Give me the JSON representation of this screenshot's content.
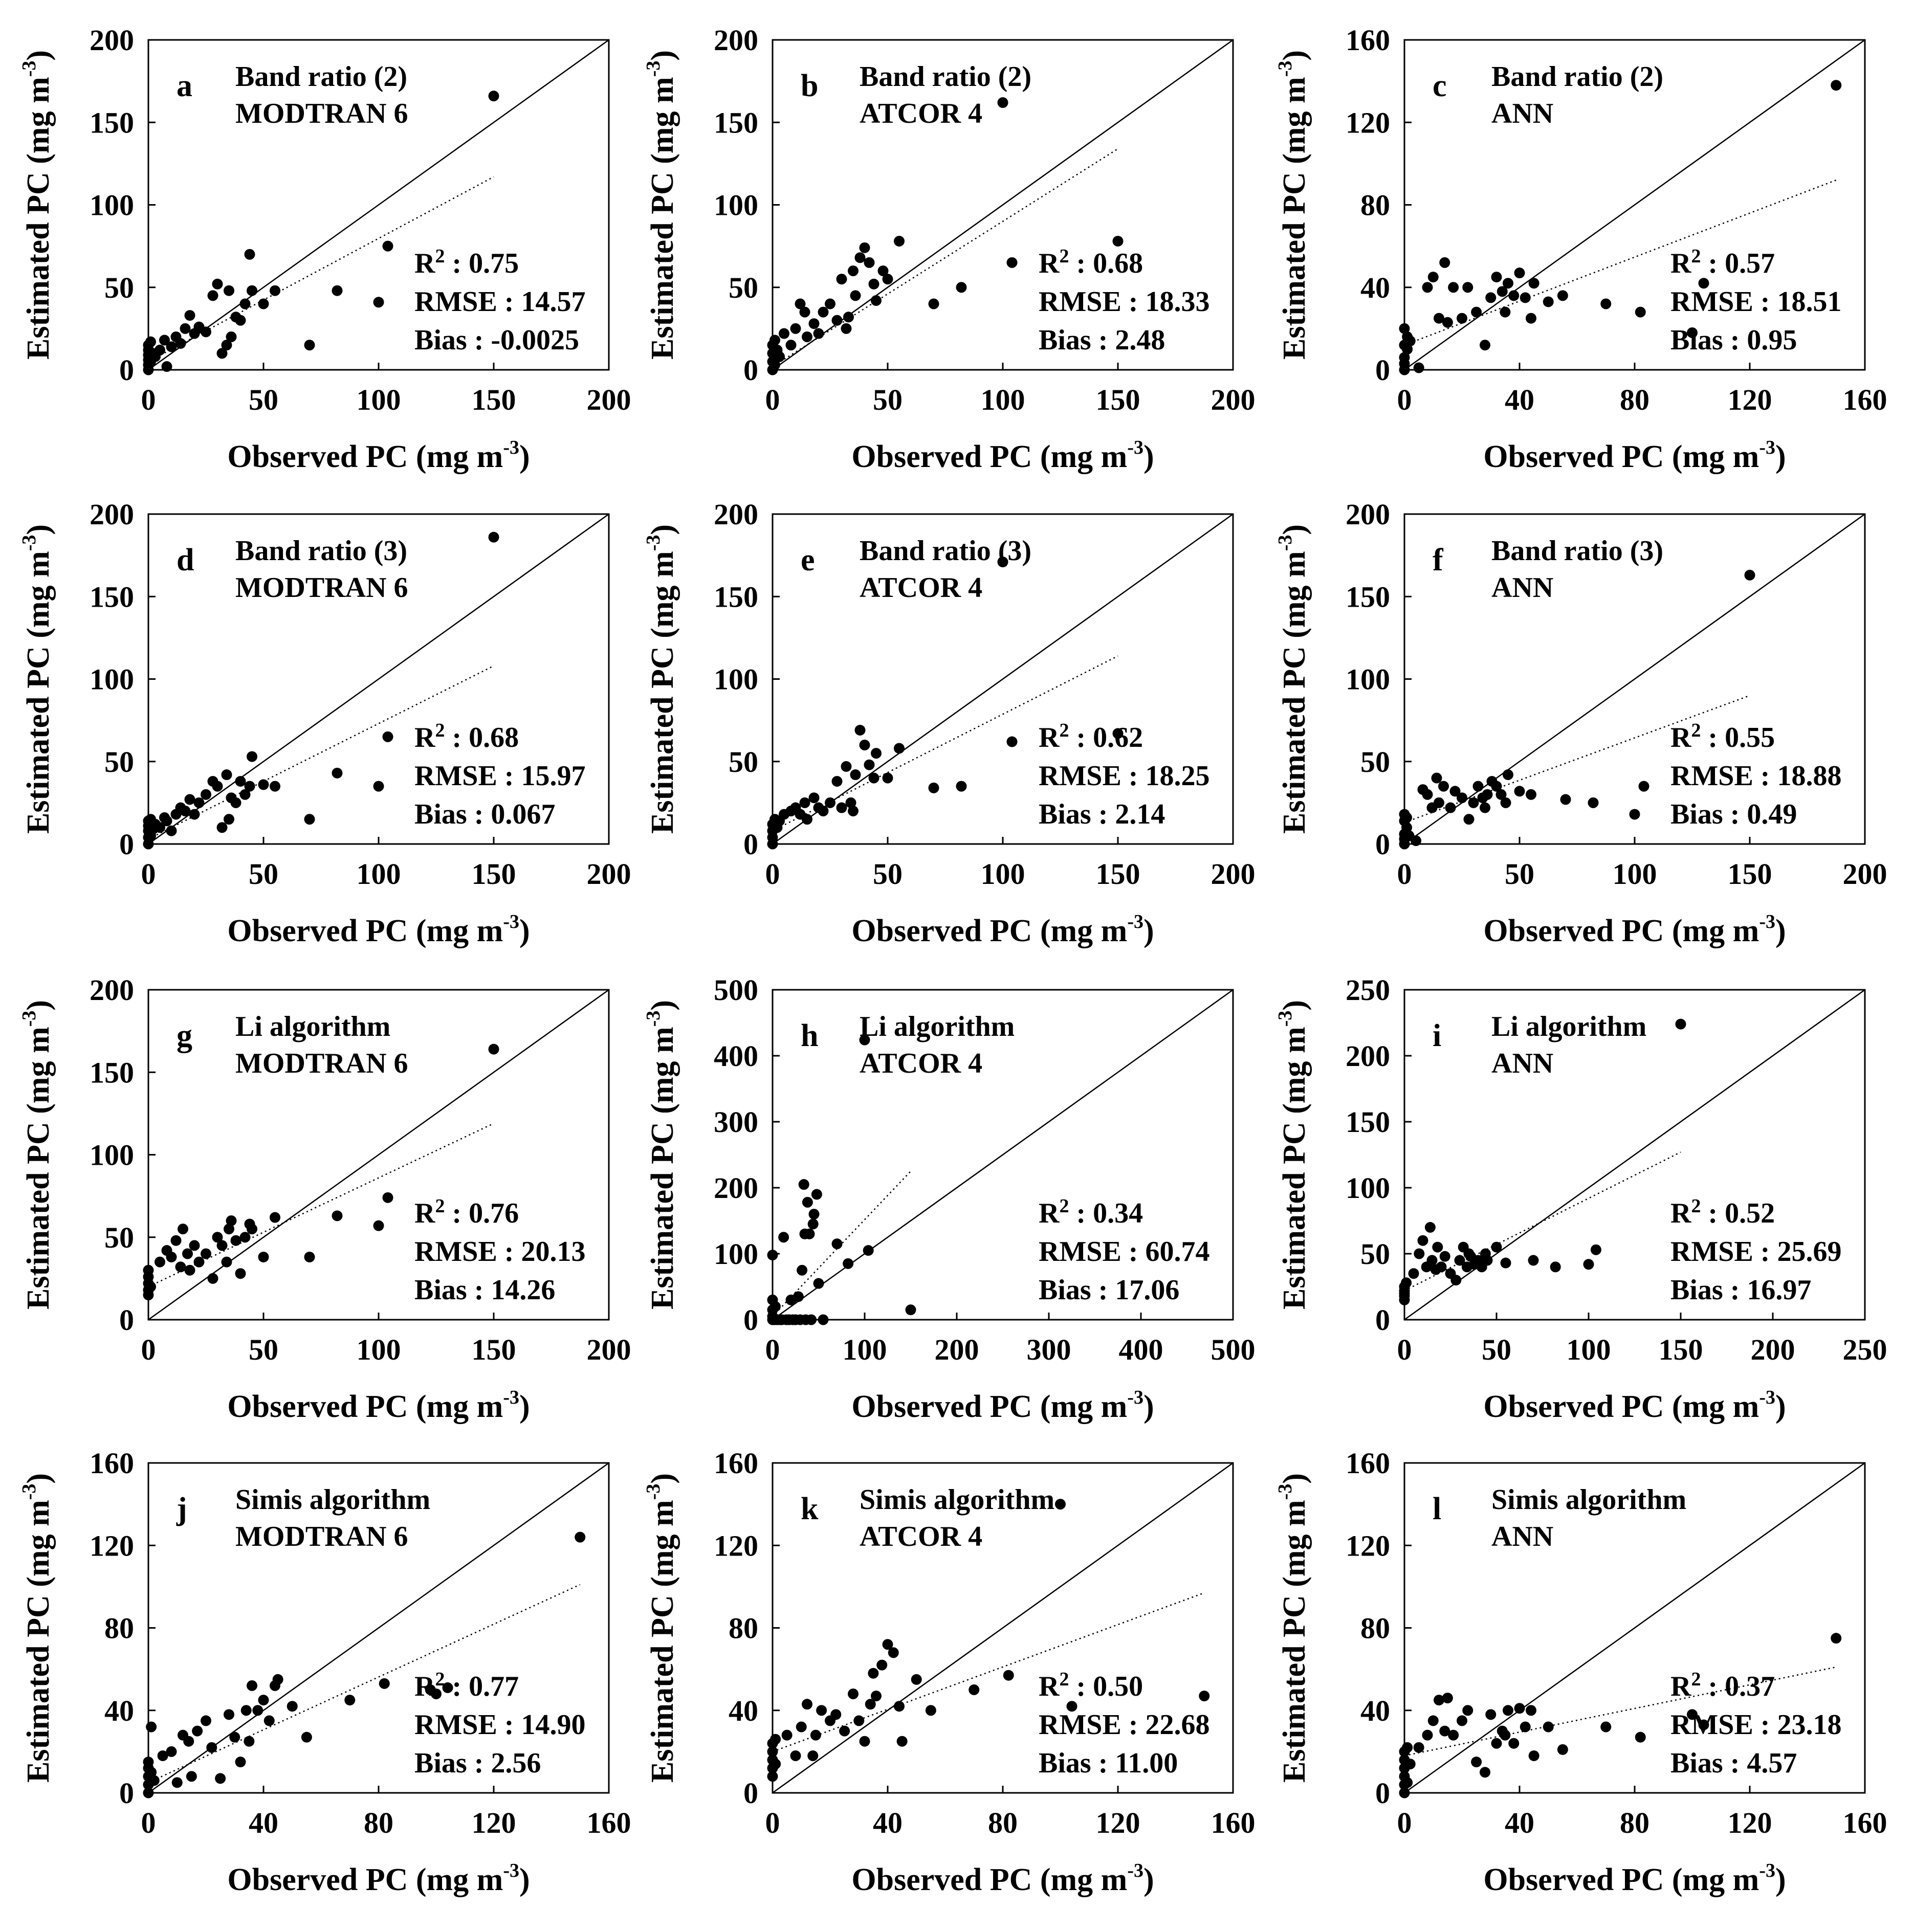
{
  "figure": {
    "background": "#ffffff",
    "ink": "#000000"
  },
  "chart_data": [
    {
      "type": "scatter",
      "panel": "a",
      "line1": "Band ratio (2)",
      "line2": "MODTRAN 6",
      "xlabel": "Observed PC (mg m",
      "ylabel": "Estimated PC (mg m",
      "unit_exp": "-3",
      "unit_close": ")",
      "xlim": [
        0,
        200
      ],
      "ylim": [
        0,
        200
      ],
      "ticks": [
        0,
        50,
        100,
        150,
        200
      ],
      "stats": {
        "r2_label": "R",
        "r2_exp": "2",
        "r2_value": " : 0.75",
        "rmse": "RMSE : 14.57",
        "bias": "Bias : -0.0025"
      },
      "fit": {
        "x": [
          0,
          150
        ],
        "y": [
          5,
          117
        ]
      },
      "x": [
        0,
        0,
        0,
        0,
        0,
        0,
        1,
        1,
        2,
        3,
        5,
        7,
        8,
        10,
        12,
        14,
        16,
        18,
        20,
        22,
        25,
        28,
        30,
        32,
        34,
        35,
        36,
        38,
        40,
        42,
        44,
        45,
        50,
        55,
        70,
        82,
        100,
        104,
        150
      ],
      "y": [
        0,
        3,
        6,
        9,
        12,
        15,
        5,
        17,
        10,
        8,
        12,
        18,
        2,
        14,
        20,
        16,
        25,
        33,
        22,
        26,
        23,
        45,
        52,
        10,
        15,
        48,
        20,
        32,
        30,
        40,
        70,
        48,
        40,
        48,
        15,
        48,
        41,
        75,
        166
      ]
    },
    {
      "type": "scatter",
      "panel": "b",
      "line1": "Band ratio (2)",
      "line2": "ATCOR 4",
      "xlabel": "Observed PC (mg m",
      "ylabel": "Estimated PC (mg m",
      "unit_exp": "-3",
      "unit_close": ")",
      "xlim": [
        0,
        200
      ],
      "ylim": [
        0,
        200
      ],
      "ticks": [
        0,
        50,
        100,
        150,
        200
      ],
      "stats": {
        "r2_label": "R",
        "r2_exp": "2",
        "r2_value": " : 0.68",
        "rmse": "RMSE : 18.33",
        "bias": "Bias : 2.48"
      },
      "fit": {
        "x": [
          0,
          150
        ],
        "y": [
          2,
          134
        ]
      },
      "x": [
        0,
        0,
        0,
        0,
        1,
        1,
        2,
        3,
        5,
        8,
        10,
        12,
        14,
        15,
        18,
        20,
        22,
        25,
        28,
        30,
        32,
        33,
        35,
        36,
        38,
        40,
        42,
        44,
        45,
        48,
        50,
        55,
        70,
        82,
        100,
        104,
        150
      ],
      "y": [
        0,
        5,
        10,
        15,
        3,
        18,
        12,
        8,
        22,
        15,
        25,
        40,
        35,
        20,
        28,
        22,
        35,
        40,
        30,
        55,
        25,
        32,
        60,
        45,
        68,
        74,
        65,
        52,
        42,
        60,
        55,
        78,
        40,
        50,
        162,
        65,
        78
      ]
    },
    {
      "type": "scatter",
      "panel": "c",
      "line1": "Band ratio (2)",
      "line2": "ANN",
      "xlabel": "Observed PC (mg m",
      "ylabel": "Estimated PC (mg m",
      "unit_exp": "-3",
      "unit_close": ")",
      "xlim": [
        0,
        160
      ],
      "ylim": [
        0,
        160
      ],
      "ticks": [
        0,
        40,
        80,
        120,
        160
      ],
      "stats": {
        "r2_label": "R",
        "r2_exp": "2",
        "r2_value": " : 0.57",
        "rmse": "RMSE : 18.51",
        "bias": "Bias : 0.95"
      },
      "fit": {
        "x": [
          0,
          150
        ],
        "y": [
          12,
          92
        ]
      },
      "x": [
        0,
        0,
        0,
        0,
        0,
        1,
        1,
        2,
        5,
        8,
        10,
        12,
        14,
        15,
        17,
        20,
        22,
        25,
        28,
        30,
        32,
        34,
        35,
        36,
        38,
        40,
        42,
        44,
        45,
        50,
        55,
        70,
        82,
        100,
        104,
        150
      ],
      "y": [
        0,
        3,
        6,
        12,
        20,
        10,
        16,
        14,
        1,
        40,
        45,
        25,
        52,
        23,
        40,
        25,
        40,
        28,
        12,
        35,
        45,
        38,
        28,
        42,
        36,
        47,
        35,
        25,
        42,
        33,
        36,
        32,
        28,
        18,
        42,
        138
      ]
    },
    {
      "type": "scatter",
      "panel": "d",
      "line1": "Band ratio (3)",
      "line2": "MODTRAN 6",
      "xlabel": "Observed PC (mg m",
      "ylabel": "Estimated PC (mg m",
      "unit_exp": "-3",
      "unit_close": ")",
      "xlim": [
        0,
        200
      ],
      "ylim": [
        0,
        200
      ],
      "ticks": [
        0,
        50,
        100,
        150,
        200
      ],
      "stats": {
        "r2_label": "R",
        "r2_exp": "2",
        "r2_value": " : 0.68",
        "rmse": "RMSE : 15.97",
        "bias": "Bias : 0.067"
      },
      "fit": {
        "x": [
          0,
          150
        ],
        "y": [
          3,
          108
        ]
      },
      "x": [
        0,
        0,
        0,
        0,
        0,
        1,
        1,
        2,
        3,
        5,
        7,
        8,
        10,
        12,
        14,
        16,
        18,
        20,
        22,
        25,
        28,
        30,
        32,
        34,
        35,
        36,
        38,
        40,
        42,
        44,
        45,
        50,
        55,
        70,
        82,
        100,
        104,
        150
      ],
      "y": [
        0,
        4,
        8,
        11,
        14,
        5,
        15,
        9,
        12,
        10,
        16,
        14,
        8,
        18,
        22,
        20,
        27,
        18,
        25,
        30,
        38,
        35,
        10,
        42,
        15,
        28,
        25,
        38,
        30,
        35,
        53,
        36,
        35,
        15,
        43,
        35,
        65,
        186
      ]
    },
    {
      "type": "scatter",
      "panel": "e",
      "line1": "Band ratio (3)",
      "line2": "ATCOR 4",
      "xlabel": "Observed PC (mg m",
      "ylabel": "Estimated PC (mg m",
      "unit_exp": "-3",
      "unit_close": ")",
      "xlim": [
        0,
        200
      ],
      "ylim": [
        0,
        200
      ],
      "ticks": [
        0,
        50,
        100,
        150,
        200
      ],
      "stats": {
        "r2_label": "R",
        "r2_exp": "2",
        "r2_value": " : 0.62",
        "rmse": "RMSE : 18.25",
        "bias": "Bias : 2.14"
      },
      "fit": {
        "x": [
          0,
          150
        ],
        "y": [
          8,
          114
        ]
      },
      "x": [
        0,
        0,
        0,
        0,
        1,
        2,
        3,
        5,
        8,
        10,
        12,
        14,
        15,
        18,
        20,
        22,
        25,
        28,
        30,
        32,
        34,
        35,
        36,
        38,
        40,
        42,
        44,
        45,
        50,
        55,
        70,
        82,
        100,
        104,
        150
      ],
      "y": [
        0,
        4,
        8,
        12,
        15,
        10,
        14,
        18,
        20,
        22,
        18,
        25,
        15,
        28,
        22,
        20,
        25,
        38,
        22,
        47,
        25,
        20,
        42,
        69,
        60,
        48,
        40,
        55,
        40,
        58,
        34,
        35,
        171,
        62,
        67
      ]
    },
    {
      "type": "scatter",
      "panel": "f",
      "line1": "Band ratio (3)",
      "line2": "ANN",
      "xlabel": "Observed PC (mg m",
      "ylabel": "Estimated PC (mg m",
      "unit_exp": "-3",
      "unit_close": ")",
      "xlim": [
        0,
        200
      ],
      "ylim": [
        0,
        200
      ],
      "ticks": [
        0,
        50,
        100,
        150,
        200
      ],
      "stats": {
        "r2_label": "R",
        "r2_exp": "2",
        "r2_value": " : 0.55",
        "rmse": "RMSE : 18.88",
        "bias": "Bias : 0.49"
      },
      "fit": {
        "x": [
          0,
          150
        ],
        "y": [
          13,
          90
        ]
      },
      "x": [
        0,
        0,
        0,
        0,
        0,
        1,
        1,
        2,
        5,
        8,
        10,
        12,
        14,
        15,
        17,
        20,
        22,
        25,
        28,
        30,
        32,
        34,
        35,
        36,
        38,
        40,
        42,
        44,
        45,
        50,
        55,
        70,
        82,
        100,
        104,
        150
      ],
      "y": [
        0,
        3,
        6,
        14,
        18,
        10,
        16,
        5,
        2,
        33,
        30,
        22,
        40,
        25,
        35,
        22,
        32,
        28,
        15,
        25,
        35,
        28,
        22,
        30,
        38,
        35,
        30,
        25,
        42,
        32,
        30,
        27,
        25,
        18,
        35,
        163
      ]
    },
    {
      "type": "scatter",
      "panel": "g",
      "line1": "Li algorithm",
      "line2": "MODTRAN 6",
      "xlabel": "Observed PC (mg m",
      "ylabel": "Estimated PC (mg m",
      "unit_exp": "-3",
      "unit_close": ")",
      "xlim": [
        0,
        200
      ],
      "ylim": [
        0,
        200
      ],
      "ticks": [
        0,
        50,
        100,
        150,
        200
      ],
      "stats": {
        "r2_label": "R",
        "r2_exp": "2",
        "r2_value": " : 0.76",
        "rmse": "RMSE : 20.13",
        "bias": "Bias : 14.26"
      },
      "fit": {
        "x": [
          0,
          150
        ],
        "y": [
          20,
          119
        ]
      },
      "x": [
        0,
        0,
        0,
        0,
        0,
        1,
        5,
        8,
        10,
        12,
        14,
        15,
        17,
        18,
        20,
        22,
        25,
        28,
        30,
        32,
        34,
        35,
        36,
        38,
        40,
        42,
        44,
        45,
        50,
        55,
        70,
        82,
        100,
        104,
        150
      ],
      "y": [
        15,
        18,
        22,
        26,
        30,
        20,
        35,
        42,
        38,
        48,
        32,
        55,
        40,
        30,
        45,
        35,
        40,
        25,
        50,
        45,
        35,
        55,
        60,
        48,
        28,
        50,
        58,
        55,
        38,
        62,
        38,
        63,
        57,
        74,
        164
      ]
    },
    {
      "type": "scatter",
      "panel": "h",
      "line1": "Li algorithm",
      "line2": "ATCOR 4",
      "xlabel": "Observed PC (mg m",
      "ylabel": "Estimated PC (mg m",
      "unit_exp": "-3",
      "unit_close": ")",
      "xlim": [
        0,
        500
      ],
      "ylim": [
        0,
        500
      ],
      "ticks": [
        0,
        100,
        200,
        300,
        400,
        500
      ],
      "stats": {
        "r2_label": "R",
        "r2_exp": "2",
        "r2_value": " : 0.34",
        "rmse": "RMSE : 60.74",
        "bias": "Bias : 17.06"
      },
      "fit": {
        "x": [
          0,
          150
        ],
        "y": [
          5,
          225
        ]
      },
      "x": [
        0,
        0,
        0,
        0,
        0,
        2,
        3,
        5,
        8,
        10,
        12,
        15,
        18,
        20,
        22,
        25,
        28,
        30,
        32,
        34,
        35,
        36,
        38,
        40,
        42,
        44,
        45,
        48,
        50,
        55,
        70,
        82,
        100,
        104,
        150
      ],
      "y": [
        0,
        5,
        15,
        30,
        98,
        0,
        20,
        0,
        0,
        0,
        125,
        0,
        0,
        30,
        0,
        0,
        35,
        0,
        75,
        205,
        130,
        0,
        178,
        130,
        0,
        145,
        160,
        190,
        55,
        0,
        115,
        85,
        424,
        105,
        15
      ]
    },
    {
      "type": "scatter",
      "panel": "i",
      "line1": "Li algorithm",
      "line2": "ANN",
      "xlabel": "Observed PC (mg m",
      "ylabel": "Estimated PC (mg m",
      "unit_exp": "-3",
      "unit_close": ")",
      "xlim": [
        0,
        250
      ],
      "ylim": [
        0,
        250
      ],
      "ticks": [
        0,
        50,
        100,
        150,
        200,
        250
      ],
      "stats": {
        "r2_label": "R",
        "r2_exp": "2",
        "r2_value": " : 0.52",
        "rmse": "RMSE : 25.69",
        "bias": "Bias : 16.97"
      },
      "fit": {
        "x": [
          0,
          150
        ],
        "y": [
          22,
          127
        ]
      },
      "x": [
        0,
        0,
        0,
        0,
        0,
        1,
        5,
        8,
        10,
        12,
        14,
        15,
        17,
        18,
        20,
        22,
        25,
        28,
        30,
        32,
        34,
        35,
        36,
        38,
        40,
        42,
        44,
        45,
        50,
        55,
        70,
        82,
        100,
        104,
        150
      ],
      "y": [
        15,
        20,
        25,
        18,
        22,
        28,
        35,
        50,
        60,
        40,
        70,
        45,
        38,
        55,
        40,
        48,
        35,
        30,
        45,
        55,
        40,
        50,
        48,
        42,
        45,
        40,
        50,
        45,
        55,
        43,
        45,
        40,
        42,
        53,
        224
      ]
    },
    {
      "type": "scatter",
      "panel": "j",
      "line1": "Simis algorithm",
      "line2": "MODTRAN 6",
      "xlabel": "Observed PC (mg m",
      "ylabel": "Estimated PC (mg m",
      "unit_exp": "-3",
      "unit_close": ")",
      "xlim": [
        0,
        160
      ],
      "ylim": [
        0,
        160
      ],
      "ticks": [
        0,
        40,
        80,
        120,
        160
      ],
      "stats": {
        "r2_label": "R",
        "r2_exp": "2",
        "r2_value": " : 0.77",
        "rmse": "RMSE : 14.90",
        "bias": "Bias : 2.56"
      },
      "fit": {
        "x": [
          0,
          150
        ],
        "y": [
          5,
          101
        ]
      },
      "x": [
        0,
        0,
        0,
        0,
        0,
        1,
        1,
        2,
        5,
        8,
        10,
        12,
        14,
        15,
        17,
        20,
        22,
        25,
        28,
        30,
        32,
        34,
        35,
        36,
        38,
        40,
        42,
        44,
        45,
        50,
        55,
        70,
        82,
        98,
        100,
        104,
        150
      ],
      "y": [
        0,
        4,
        8,
        12,
        15,
        10,
        32,
        6,
        18,
        20,
        5,
        28,
        25,
        8,
        30,
        35,
        22,
        7,
        38,
        27,
        15,
        40,
        25,
        52,
        40,
        45,
        35,
        52,
        55,
        42,
        27,
        45,
        53,
        50,
        48,
        51,
        124
      ]
    },
    {
      "type": "scatter",
      "panel": "k",
      "line1": "Simis algorithm",
      "line2": "ATCOR 4",
      "xlabel": "Observed PC (mg m",
      "ylabel": "Estimated PC (mg m",
      "unit_exp": "-3",
      "unit_close": ")",
      "xlim": [
        0,
        160
      ],
      "ylim": [
        0,
        160
      ],
      "ticks": [
        0,
        40,
        80,
        120,
        160
      ],
      "stats": {
        "r2_label": "R",
        "r2_exp": "2",
        "r2_value": " : 0.50",
        "rmse": "RMSE : 22.68",
        "bias": "Bias : 11.00"
      },
      "fit": {
        "x": [
          0,
          150
        ],
        "y": [
          20,
          97
        ]
      },
      "x": [
        0,
        0,
        0,
        0,
        0,
        1,
        1,
        5,
        8,
        10,
        12,
        14,
        15,
        17,
        20,
        22,
        25,
        28,
        30,
        32,
        34,
        35,
        36,
        38,
        40,
        42,
        44,
        45,
        50,
        55,
        70,
        82,
        100,
        104,
        150
      ],
      "y": [
        8,
        12,
        16,
        20,
        24,
        14,
        26,
        28,
        18,
        32,
        43,
        18,
        28,
        40,
        35,
        38,
        30,
        48,
        35,
        25,
        43,
        58,
        47,
        62,
        72,
        68,
        42,
        25,
        55,
        40,
        50,
        57,
        140,
        42,
        47
      ]
    },
    {
      "type": "scatter",
      "panel": "l",
      "line1": "Simis algorithm",
      "line2": "ANN",
      "xlabel": "Observed PC (mg m",
      "ylabel": "Estimated PC (mg m",
      "unit_exp": "-3",
      "unit_close": ")",
      "xlim": [
        0,
        160
      ],
      "ylim": [
        0,
        160
      ],
      "ticks": [
        0,
        40,
        80,
        120,
        160
      ],
      "stats": {
        "r2_label": "R",
        "r2_exp": "2",
        "r2_value": " : 0.37",
        "rmse": "RMSE : 23.18",
        "bias": "Bias : 4.57"
      },
      "fit": {
        "x": [
          0,
          150
        ],
        "y": [
          18,
          61
        ]
      },
      "x": [
        0,
        0,
        0,
        0,
        0,
        0,
        1,
        1,
        2,
        5,
        8,
        10,
        12,
        14,
        15,
        17,
        20,
        22,
        25,
        28,
        30,
        32,
        34,
        35,
        36,
        38,
        40,
        42,
        44,
        45,
        50,
        55,
        70,
        82,
        100,
        104,
        150
      ],
      "y": [
        0,
        4,
        8,
        12,
        16,
        20,
        5,
        22,
        14,
        22,
        28,
        35,
        45,
        30,
        46,
        28,
        35,
        40,
        15,
        10,
        38,
        24,
        30,
        28,
        40,
        24,
        41,
        32,
        40,
        18,
        32,
        21,
        32,
        27,
        38,
        33,
        75
      ]
    }
  ]
}
